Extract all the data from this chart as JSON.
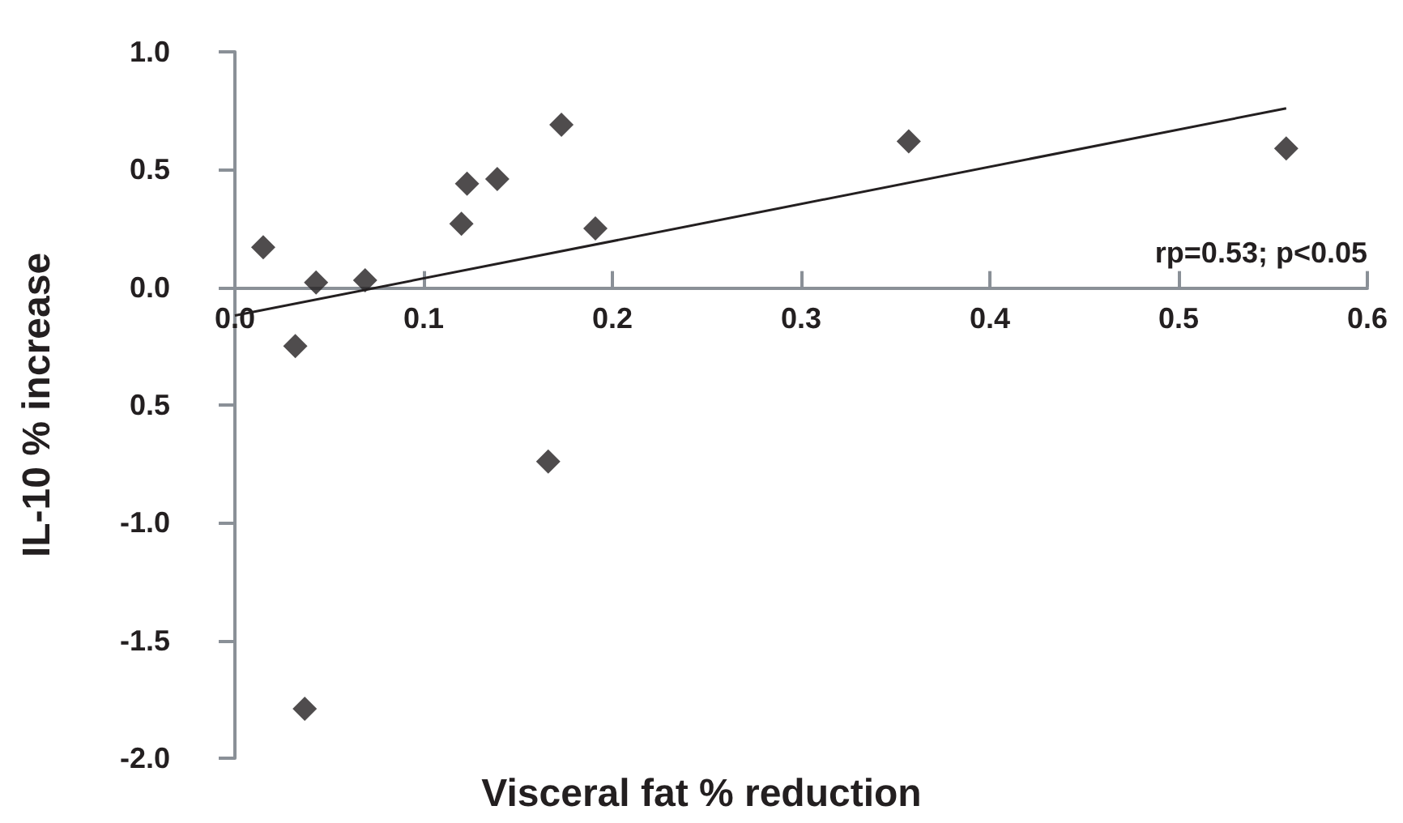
{
  "chart_data": {
    "type": "scatter",
    "xlabel": "Visceral fat % reduction",
    "ylabel": "IL-10 % increase",
    "annotations": [
      "rp=0.53; p<0.05"
    ],
    "xlim": [
      0,
      0.6
    ],
    "xticks": [
      {
        "value": 0,
        "label": "0.0"
      },
      0.1,
      0.2,
      0.3,
      0.4,
      0.5,
      0.6
    ],
    "ylim": [
      -2,
      1
    ],
    "yticks": [
      {
        "value": -2,
        "label": "-2.0"
      },
      -1.5,
      {
        "value": -1,
        "label": "-1.0"
      },
      {
        "value": -0.5,
        "label": "0.5"
      },
      {
        "value": 0,
        "label": "0.0"
      },
      0.5,
      {
        "value": 1,
        "label": "1.0"
      }
    ],
    "grid": false,
    "marker": "diamond",
    "series": [
      {
        "type": "scatter",
        "color": "#231f20",
        "x": [
          0.015,
          0.032,
          0.043,
          0.069,
          0.037,
          0.12,
          0.123,
          0.139,
          0.173,
          0.191,
          0.166,
          0.357,
          0.557
        ],
        "values": [
          0.17,
          -0.25,
          0.02,
          0.03,
          -1.79,
          0.27,
          0.44,
          0.46,
          0.69,
          0.25,
          -0.74,
          0.62,
          0.59
        ]
      },
      {
        "type": "line",
        "color": "#231f20",
        "x": [
          0,
          0.557
        ],
        "values": [
          -0.12,
          0.76
        ],
        "line_style": "solid",
        "marker": "none"
      }
    ]
  }
}
